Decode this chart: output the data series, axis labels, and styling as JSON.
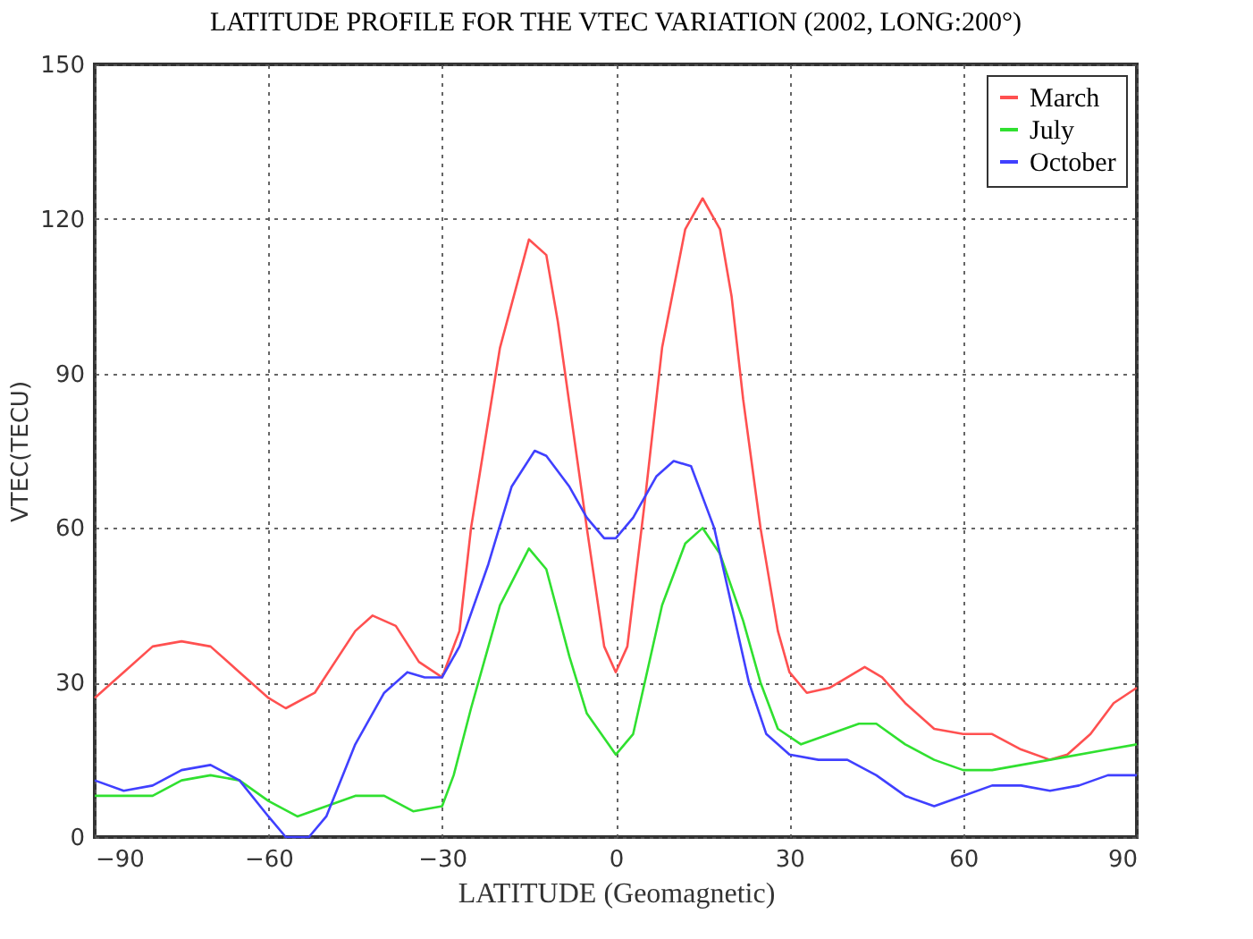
{
  "chart_data": {
    "type": "line",
    "title": "LATITUDE PROFILE FOR THE VTEC VARIATION (2002, LONG:200°)",
    "xlabel": "LATITUDE (Geomagnetic)",
    "ylabel": "VTEC(TECU)",
    "xlim": [
      -90,
      90
    ],
    "xticks": [
      -90,
      -60,
      -30,
      0,
      30,
      60,
      90
    ],
    "ylim": [
      0,
      150
    ],
    "yticks": [
      0,
      30,
      60,
      90,
      120,
      150
    ],
    "grid": true,
    "legend": "top right",
    "line_style": "solid",
    "series": [
      {
        "name": "March",
        "color": "#ff5050",
        "x": [
          -90,
          -85,
          -80,
          -75,
          -70,
          -65,
          -60,
          -57,
          -52,
          -45,
          -42,
          -38,
          -34,
          -30,
          -27,
          -25,
          -20,
          -15,
          -12,
          -10,
          -5,
          -2,
          0,
          2,
          5,
          8,
          12,
          15,
          18,
          20,
          22,
          25,
          28,
          30,
          33,
          37,
          43,
          46,
          50,
          55,
          60,
          65,
          70,
          75,
          78,
          82,
          86,
          90
        ],
        "values": [
          27,
          32,
          37,
          38,
          37,
          32,
          27,
          25,
          28,
          40,
          43,
          41,
          34,
          31,
          40,
          60,
          95,
          116,
          113,
          100,
          60,
          37,
          32,
          37,
          65,
          95,
          118,
          124,
          118,
          105,
          85,
          60,
          40,
          32,
          28,
          29,
          33,
          31,
          26,
          21,
          20,
          20,
          17,
          15,
          16,
          20,
          26,
          29
        ]
      },
      {
        "name": "July",
        "color": "#30e030",
        "x": [
          -90,
          -80,
          -75,
          -70,
          -65,
          -60,
          -55,
          -50,
          -45,
          -40,
          -35,
          -30,
          -28,
          -25,
          -20,
          -15,
          -12,
          -8,
          -5,
          0,
          3,
          5,
          8,
          12,
          15,
          18,
          22,
          25,
          28,
          32,
          37,
          42,
          45,
          50,
          55,
          60,
          65,
          75,
          85,
          90
        ],
        "values": [
          8,
          8,
          11,
          12,
          11,
          7,
          4,
          6,
          8,
          8,
          5,
          6,
          12,
          25,
          45,
          56,
          52,
          35,
          24,
          16,
          20,
          30,
          45,
          57,
          60,
          55,
          42,
          30,
          21,
          18,
          20,
          22,
          22,
          18,
          15,
          13,
          13,
          15,
          17,
          18
        ]
      },
      {
        "name": "October",
        "color": "#4040ff",
        "x": [
          -90,
          -85,
          -80,
          -75,
          -70,
          -65,
          -60,
          -57,
          -53,
          -50,
          -45,
          -40,
          -36,
          -33,
          -30,
          -27,
          -22,
          -18,
          -14,
          -12,
          -8,
          -5,
          -2,
          0,
          3,
          7,
          10,
          13,
          17,
          20,
          23,
          26,
          30,
          35,
          40,
          45,
          50,
          55,
          60,
          65,
          70,
          75,
          80,
          85,
          90
        ],
        "values": [
          11,
          9,
          10,
          13,
          14,
          11,
          4,
          0,
          0,
          4,
          18,
          28,
          32,
          31,
          31,
          37,
          53,
          68,
          75,
          74,
          68,
          62,
          58,
          58,
          62,
          70,
          73,
          72,
          60,
          45,
          30,
          20,
          16,
          15,
          15,
          12,
          8,
          6,
          8,
          10,
          10,
          9,
          10,
          12,
          12
        ]
      }
    ]
  }
}
